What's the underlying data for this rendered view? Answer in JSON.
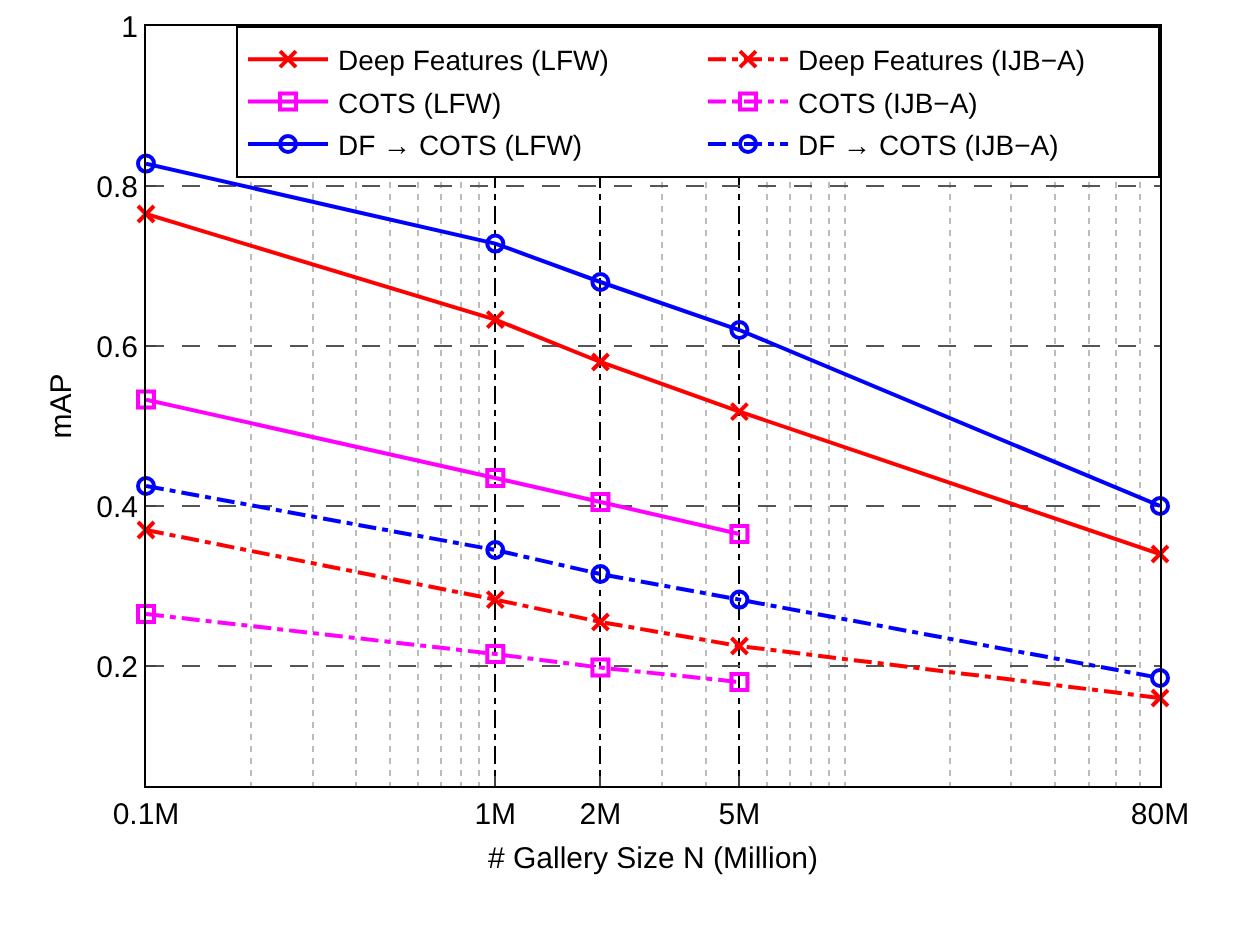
{
  "chart_data": {
    "type": "line",
    "xlabel": "# Gallery Size N (Million)",
    "ylabel": "mAP",
    "log": "x",
    "grid": true,
    "legend": "top right",
    "xlim": [
      0.1,
      80
    ],
    "xticks": [
      {
        "value": 0.1,
        "label": "0.1M"
      },
      {
        "value": 1,
        "label": "1M"
      },
      {
        "value": 2,
        "label": "2M"
      },
      {
        "value": 5,
        "label": "5M"
      },
      {
        "value": 80,
        "label": "80M"
      }
    ],
    "ylim": [
      0.05,
      1
    ],
    "yticks": [
      0.2,
      0.4,
      0.6,
      0.8,
      1
    ],
    "series": [
      {
        "name": "Deep Features (LFW)",
        "color": "#ff0000",
        "marker": "cross",
        "line_style": "solid",
        "x": [
          0.1,
          1,
          2,
          5,
          80
        ],
        "values": [
          0.765,
          0.633,
          0.58,
          0.518,
          0.34
        ]
      },
      {
        "name": "Deep Features (IJB−A)",
        "color": "#ff0000",
        "marker": "cross",
        "line_style": "dashdot",
        "x": [
          0.1,
          1,
          2,
          5,
          80
        ],
        "values": [
          0.37,
          0.283,
          0.255,
          0.225,
          0.16
        ]
      },
      {
        "name": "COTS (LFW)",
        "color": "#ff00ff",
        "marker": "square",
        "line_style": "solid",
        "x": [
          0.1,
          1,
          2,
          5
        ],
        "values": [
          0.533,
          0.435,
          0.405,
          0.365
        ]
      },
      {
        "name": "COTS (IJB−A)",
        "color": "#ff00ff",
        "marker": "square",
        "line_style": "dashdot",
        "x": [
          0.1,
          1,
          2,
          5
        ],
        "values": [
          0.265,
          0.215,
          0.198,
          0.18
        ]
      },
      {
        "name": "DF → COTS (LFW)",
        "color": "#0000ff",
        "marker": "circle",
        "line_style": "solid",
        "x": [
          0.1,
          1,
          2,
          5,
          80
        ],
        "values": [
          0.828,
          0.728,
          0.68,
          0.62,
          0.4
        ]
      },
      {
        "name": "DF → COTS (IJB−A)",
        "color": "#0000ff",
        "marker": "circle",
        "line_style": "dashdot",
        "x": [
          0.1,
          1,
          2,
          5,
          80
        ],
        "values": [
          0.425,
          0.345,
          0.315,
          0.283,
          0.185
        ]
      }
    ]
  }
}
